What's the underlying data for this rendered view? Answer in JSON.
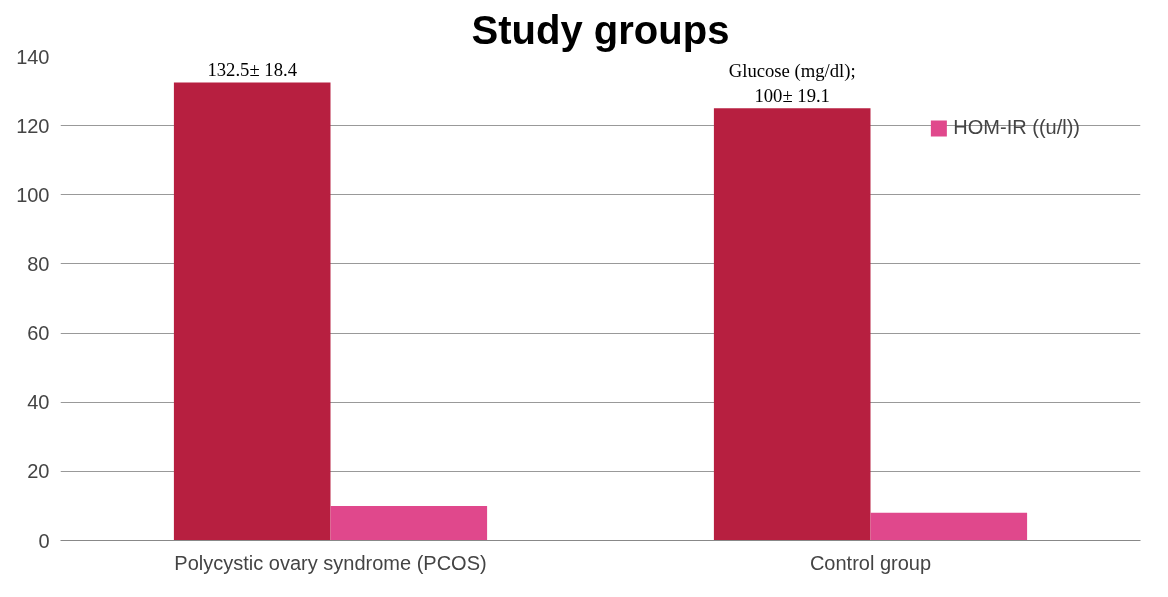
{
  "chart_data": {
    "type": "bar",
    "title": "Study groups",
    "categories": [
      "Polycystic ovary syndrome (PCOS)",
      "Control group"
    ],
    "series": [
      {
        "color": "#b71f40",
        "values": [
          132.5,
          125
        ],
        "value_labels": [
          "132.5± 18.4",
          "Glucose (mg/dl);\n100± 19.1"
        ]
      },
      {
        "name": "HOM-IR ((u/l))",
        "color": "#e0488c",
        "values": [
          10,
          8
        ]
      }
    ],
    "ylim": [
      0,
      140
    ],
    "yticks": [
      0,
      20,
      40,
      60,
      80,
      100,
      120,
      140
    ],
    "grid": "y",
    "legend": "top right"
  }
}
